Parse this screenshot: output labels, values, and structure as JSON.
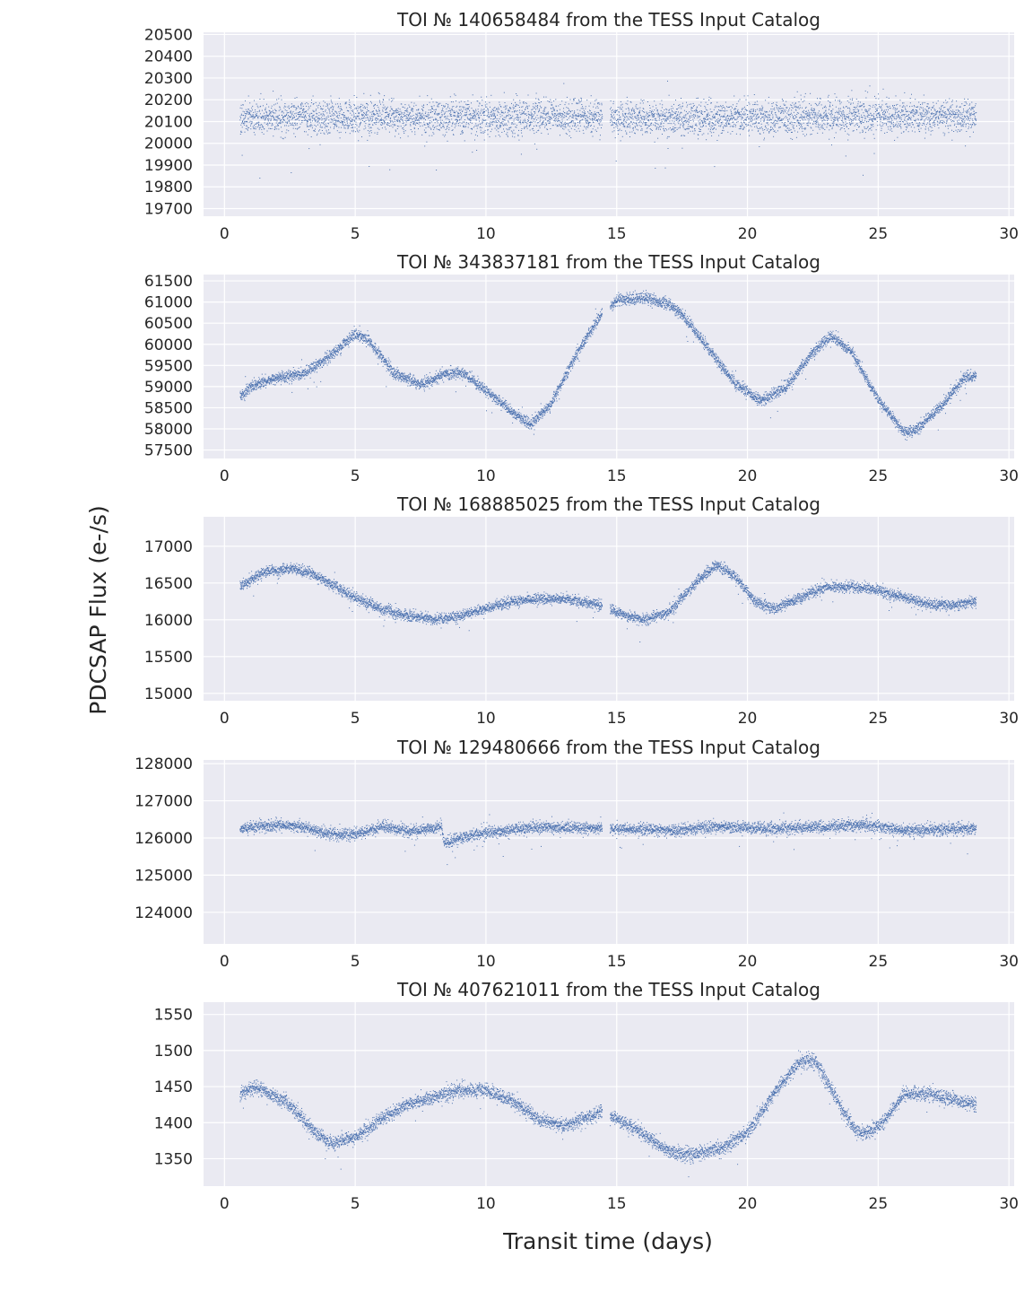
{
  "figure": {
    "ylabel": "PDCSAP Flux (e-/s)",
    "xlabel": "Transit time (days)"
  },
  "colors": {
    "panel_bg": "#eaeaf2",
    "grid": "#ffffff",
    "points": "#4c72b0",
    "text": "#262626"
  },
  "chart_data": [
    {
      "type": "scatter",
      "title": "TOI № 140658484 from the TESS Input Catalog",
      "xlim": [
        -0.8,
        30.2
      ],
      "ylim": [
        19665,
        20510
      ],
      "xticks": [
        0,
        5,
        10,
        15,
        20,
        25,
        30
      ],
      "yticks": [
        19700,
        19800,
        19900,
        20000,
        20100,
        20200,
        20300,
        20400,
        20500
      ],
      "x_range": [
        0.6,
        28.75
      ],
      "gaps": [
        [
          14.45,
          14.75
        ]
      ],
      "trend": {
        "x": [
          0.6,
          5,
          10,
          14.4,
          15,
          20,
          25,
          28.7
        ],
        "y": [
          20120,
          20120,
          20120,
          20125,
          20110,
          20120,
          20125,
          20120
        ]
      },
      "scatter": 70,
      "n_points": 5200
    },
    {
      "type": "scatter",
      "title": "TOI № 343837181 from the TESS Input Catalog",
      "xlim": [
        -0.8,
        30.2
      ],
      "ylim": [
        57300,
        61650
      ],
      "xticks": [
        0,
        5,
        10,
        15,
        20,
        25,
        30
      ],
      "yticks": [
        57500,
        58000,
        58500,
        59000,
        59500,
        60000,
        60500,
        61000,
        61500
      ],
      "x_range": [
        0.6,
        28.75
      ],
      "gaps": [
        [
          14.45,
          14.75
        ]
      ],
      "trend": {
        "x": [
          0.6,
          1,
          2,
          3,
          4,
          5,
          5.5,
          6.5,
          7.5,
          8.5,
          9.2,
          10,
          11,
          11.7,
          12.5,
          13.5,
          14.4,
          15,
          16,
          17,
          17.5,
          18.5,
          19.5,
          20.5,
          21.5,
          22.5,
          23.2,
          24,
          25,
          26,
          26.5,
          27.5,
          28.3,
          28.7
        ],
        "y": [
          58750,
          59000,
          59200,
          59300,
          59700,
          60250,
          60100,
          59300,
          59050,
          59300,
          59300,
          58900,
          58400,
          58100,
          58600,
          59800,
          60700,
          61050,
          61100,
          60950,
          60700,
          59900,
          59100,
          58650,
          59000,
          59800,
          60200,
          59800,
          58700,
          57900,
          58000,
          58600,
          59200,
          59250
        ]
      },
      "scatter": 120,
      "n_points": 6000
    },
    {
      "type": "scatter",
      "title": "TOI № 168885025 from the TESS Input Catalog",
      "xlim": [
        -0.8,
        30.2
      ],
      "ylim": [
        14900,
        17400
      ],
      "xticks": [
        0,
        5,
        10,
        15,
        20,
        25,
        30
      ],
      "yticks": [
        15000,
        15500,
        16000,
        16500,
        17000
      ],
      "x_range": [
        0.6,
        28.75
      ],
      "gaps": [
        [
          14.45,
          14.75
        ]
      ],
      "trend": {
        "x": [
          0.6,
          1.5,
          2.5,
          3.2,
          4,
          5,
          6,
          7,
          8,
          9,
          10,
          11,
          12,
          13,
          14.4,
          15,
          16,
          17,
          18,
          18.8,
          19.5,
          20.3,
          21,
          22,
          23,
          24,
          25,
          26,
          27,
          28,
          28.7
        ],
        "y": [
          16450,
          16650,
          16700,
          16650,
          16500,
          16300,
          16150,
          16050,
          16000,
          16050,
          16150,
          16250,
          16280,
          16280,
          16200,
          16100,
          16000,
          16100,
          16500,
          16750,
          16600,
          16250,
          16150,
          16300,
          16450,
          16450,
          16400,
          16300,
          16200,
          16200,
          16250
        ]
      },
      "scatter": 65,
      "n_points": 6000
    },
    {
      "type": "scatter",
      "title": "TOI № 129480666 from the TESS Input Catalog",
      "xlim": [
        -0.8,
        30.2
      ],
      "ylim": [
        123150,
        128100
      ],
      "xticks": [
        0,
        5,
        10,
        15,
        20,
        25,
        30
      ],
      "yticks": [
        124000,
        125000,
        126000,
        127000,
        128000
      ],
      "x_range": [
        0.6,
        28.75
      ],
      "gaps": [
        [
          14.45,
          14.75
        ]
      ],
      "trend": {
        "x": [
          0.6,
          2,
          3,
          4,
          5,
          6,
          7,
          8,
          8.3,
          8.4,
          9,
          10,
          12,
          14.4,
          15,
          17,
          19,
          21,
          23,
          24.5,
          26,
          28.7
        ],
        "y": [
          126250,
          126350,
          126300,
          126100,
          126100,
          126300,
          126200,
          126250,
          126350,
          125850,
          126000,
          126150,
          126300,
          126250,
          126250,
          126200,
          126300,
          126250,
          126300,
          126350,
          126200,
          126250
        ]
      },
      "scatter": 140,
      "n_points": 6000
    },
    {
      "type": "scatter",
      "title": "TOI № 407621011 from the TESS Input Catalog",
      "xlim": [
        -0.8,
        30.2
      ],
      "ylim": [
        1312,
        1567
      ],
      "xticks": [
        0,
        5,
        10,
        15,
        20,
        25,
        30
      ],
      "yticks": [
        1350,
        1400,
        1450,
        1500,
        1550
      ],
      "x_range": [
        0.6,
        28.75
      ],
      "gaps": [
        [
          14.45,
          14.75
        ]
      ],
      "trend": {
        "x": [
          0.6,
          1.2,
          2.5,
          3.5,
          4.2,
          5,
          6,
          7,
          8,
          9,
          10,
          11,
          12,
          13,
          14.4,
          15,
          16,
          17,
          17.8,
          19,
          20,
          21,
          22,
          22.6,
          23.3,
          24,
          24.5,
          25.2,
          26,
          27,
          28,
          28.7
        ],
        "y": [
          1440,
          1450,
          1425,
          1385,
          1370,
          1380,
          1405,
          1425,
          1435,
          1445,
          1445,
          1430,
          1405,
          1395,
          1415,
          1405,
          1385,
          1360,
          1355,
          1365,
          1385,
          1440,
          1485,
          1485,
          1440,
          1395,
          1385,
          1400,
          1440,
          1440,
          1430,
          1425
        ]
      },
      "scatter": 9,
      "n_points": 6000
    }
  ]
}
